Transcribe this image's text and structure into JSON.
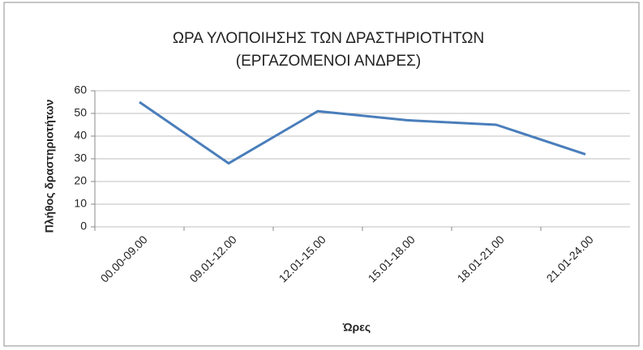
{
  "chart_data": {
    "type": "line",
    "title": "ΩΡΑ ΥΛΟΠΟΙΗΣΗΣ ΤΩΝ ΔΡΑΣΤΗΡΙΟΤΗΤΩΝ",
    "subtitle": "(ΕΡΓΑΖΟΜΕΝΟΙ ΑΝΔΡΕΣ)",
    "x_label": "Ώρες",
    "y_label": "Πλήθος δραστηριοτήτων",
    "categories": [
      "00.00-09.00",
      "09.01-12.00",
      "12.01-15.00",
      "15.01-18.00",
      "18.01-21.00",
      "21.01-24.00"
    ],
    "series": [
      {
        "name": "Πλήθος δραστηριοτήτων",
        "color": "#4a7ebb",
        "values": [
          55,
          28,
          51,
          47,
          45,
          32
        ]
      }
    ],
    "ylim": [
      0,
      60
    ],
    "yticks": [
      0,
      10,
      20,
      30,
      40,
      50,
      60
    ],
    "grid": true
  }
}
